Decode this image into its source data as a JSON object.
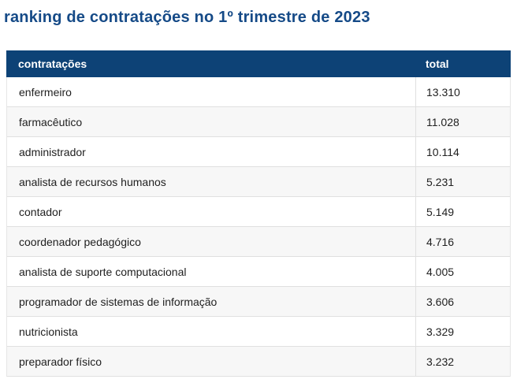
{
  "page": {
    "title": "ranking de contratações no 1º trimestre de 2023"
  },
  "table": {
    "columns": [
      {
        "label": "contratações"
      },
      {
        "label": "total"
      }
    ],
    "rows": [
      {
        "label": "enfermeiro",
        "total": "13.310"
      },
      {
        "label": "farmacêutico",
        "total": "11.028"
      },
      {
        "label": "administrador",
        "total": "10.114"
      },
      {
        "label": "analista de recursos humanos",
        "total": "5.231"
      },
      {
        "label": "contador",
        "total": "5.149"
      },
      {
        "label": "coordenador pedagógico",
        "total": "4.716"
      },
      {
        "label": "analista de suporte computacional",
        "total": "4.005"
      },
      {
        "label": "programador de sistemas de informação",
        "total": "3.606"
      },
      {
        "label": "nutricionista",
        "total": "3.329"
      },
      {
        "label": "preparador físico",
        "total": "3.232"
      }
    ]
  },
  "chart_data": {
    "type": "table",
    "title": "ranking de contratações no 1º trimestre de 2023",
    "columns": [
      "contratações",
      "total"
    ],
    "categories": [
      "enfermeiro",
      "farmacêutico",
      "administrador",
      "analista de recursos humanos",
      "contador",
      "coordenador pedagógico",
      "analista de suporte computacional",
      "programador de sistemas de informação",
      "nutricionista",
      "preparador físico"
    ],
    "values": [
      13310,
      11028,
      10114,
      5231,
      5149,
      4716,
      4005,
      3606,
      3329,
      3232
    ],
    "number_format": "pt-BR thousands separator (.)"
  },
  "colors": {
    "title_text": "#154a87",
    "header_bg": "#0d4276",
    "header_text": "#ffffff",
    "row_bg": "#ffffff",
    "row_alt_bg": "#f7f7f7",
    "row_border": "#e0e0e0",
    "cell_text": "#212121"
  }
}
